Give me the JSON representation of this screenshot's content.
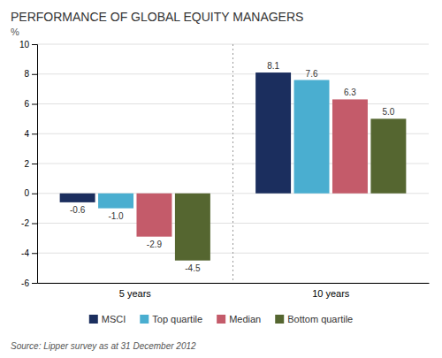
{
  "chart_data": {
    "type": "bar",
    "title": "PERFORMANCE OF GLOBAL EQUITY MANAGERS",
    "ylabel": "%",
    "categories": [
      "5 years",
      "10 years"
    ],
    "series": [
      {
        "name": "MSCI",
        "color": "#1b2e5e",
        "values": [
          -0.6,
          8.1
        ],
        "value_labels": [
          "-0.6",
          "8.1"
        ]
      },
      {
        "name": "Top quartile",
        "color": "#4aaed0",
        "values": [
          -1.0,
          7.6
        ],
        "value_labels": [
          "-1.0",
          "7.6"
        ]
      },
      {
        "name": "Median",
        "color": "#c45b6a",
        "values": [
          -2.9,
          6.3
        ],
        "value_labels": [
          "-2.9",
          "6.3"
        ]
      },
      {
        "name": "Bottom quartile",
        "color": "#556630",
        "values": [
          -4.5,
          5.0
        ],
        "value_labels": [
          "-4.5",
          "5.0"
        ]
      }
    ],
    "ylim": [
      -6,
      10
    ],
    "yticks": [
      -6,
      -4,
      -2,
      0,
      2,
      4,
      6,
      8,
      10
    ],
    "grid": true,
    "legend": "bottom",
    "data_labels": true,
    "annotations": [
      "Source: Lipper survey as at 31 December 2012"
    ]
  }
}
